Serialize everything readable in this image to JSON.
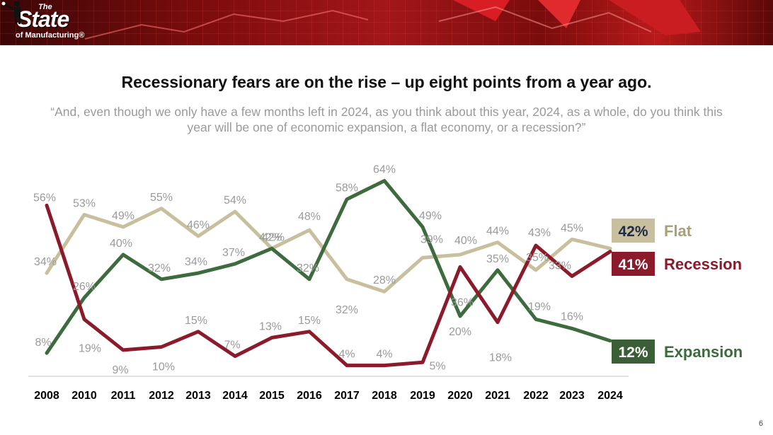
{
  "header": {
    "logo_the": "The",
    "logo_main": "State",
    "logo_sub": "of Manufacturing",
    "logo_reg": "®"
  },
  "title": "Recessionary fears are on the rise – up eight points from a year ago.",
  "question": "“And, even though we only have a few months left in 2024, as you think about this year, 2024, as a whole, do you think this year will be one of economic expansion, a flat economy, or a recession?”",
  "page_number": "6",
  "colors": {
    "flat": "#c8bf9f",
    "recession": "#8b1a2b",
    "expansion": "#3d6b3d",
    "flat_box": "#c8bf9f",
    "flat_value_text": "#1f2a44",
    "recession_box": "#8b1a2b",
    "expansion_box": "#3a5e36",
    "flat_name": "#a99f78",
    "recession_name": "#8b1a2b",
    "expansion_name": "#3d6b3d"
  },
  "chart_data": {
    "type": "line",
    "x": [
      "2008",
      "2010",
      "2011",
      "2012",
      "2013",
      "2014",
      "2015",
      "2016",
      "2017",
      "2018",
      "2019",
      "2020",
      "2021",
      "2022",
      "2023",
      "2024"
    ],
    "series": [
      {
        "name": "Flat",
        "values": [
          34,
          53,
          49,
          55,
          46,
          54,
          42,
          48,
          32,
          28,
          39,
          40,
          44,
          35,
          45,
          42
        ],
        "end_label": "42%"
      },
      {
        "name": "Recession",
        "values": [
          56,
          19,
          9,
          10,
          15,
          7,
          13,
          15,
          4,
          4,
          5,
          36,
          18,
          43,
          33,
          41
        ],
        "end_label": "41%"
      },
      {
        "name": "Expansion",
        "values": [
          8,
          26,
          40,
          32,
          34,
          37,
          42,
          32,
          58,
          64,
          49,
          20,
          35,
          19,
          16,
          12
        ],
        "end_label": "12%"
      }
    ],
    "ylim": [
      0,
      70
    ],
    "grid": false,
    "legend": "right end labels",
    "value_suffix": "%"
  }
}
